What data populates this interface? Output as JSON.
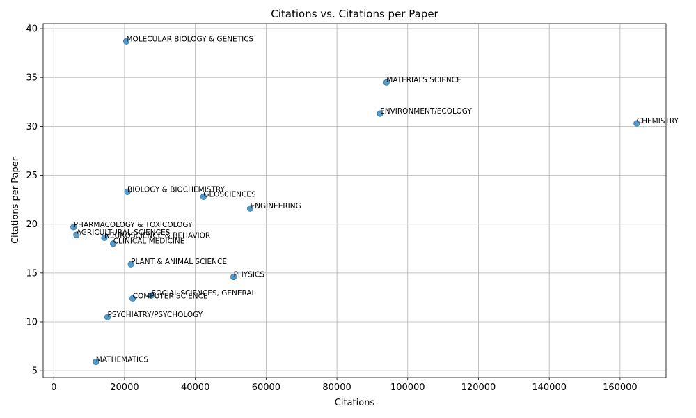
{
  "chart_data": {
    "type": "scatter",
    "title": "Citations vs. Citations per Paper",
    "xlabel": "Citations",
    "ylabel": "Citations per Paper",
    "xlim": [
      -3000,
      173000
    ],
    "ylim": [
      4.3,
      40.5
    ],
    "xticks": [
      0,
      20000,
      40000,
      60000,
      80000,
      100000,
      120000,
      140000,
      160000
    ],
    "xtick_labels": [
      "0",
      "20000",
      "40000",
      "60000",
      "80000",
      "100000",
      "120000",
      "140000",
      "160000"
    ],
    "yticks": [
      5,
      10,
      15,
      20,
      25,
      30,
      35,
      40
    ],
    "ytick_labels": [
      "5",
      "10",
      "15",
      "20",
      "25",
      "30",
      "35",
      "40"
    ],
    "grid": true,
    "color": "#1f77b4",
    "points": [
      {
        "label": "MOLECULAR BIOLOGY & GENETICS",
        "x": 20500,
        "y": 38.7
      },
      {
        "label": "MATERIALS SCIENCE",
        "x": 94000,
        "y": 34.5
      },
      {
        "label": "ENVIRONMENT/ECOLOGY",
        "x": 92200,
        "y": 31.3
      },
      {
        "label": "CHEMISTRY",
        "x": 164700,
        "y": 30.3
      },
      {
        "label": "BIOLOGY & BIOCHEMISTRY",
        "x": 20800,
        "y": 23.3
      },
      {
        "label": "GEOSCIENCES",
        "x": 42300,
        "y": 22.8
      },
      {
        "label": "ENGINEERING",
        "x": 55500,
        "y": 21.6
      },
      {
        "label": "PHARMACOLOGY & TOXICOLOGY",
        "x": 5600,
        "y": 19.7
      },
      {
        "label": "AGRICULTURAL SCIENCES",
        "x": 6400,
        "y": 18.9
      },
      {
        "label": "NEUROSCIENCE & BEHAVIOR",
        "x": 14300,
        "y": 18.6
      },
      {
        "label": "CLINICAL MEDICINE",
        "x": 16800,
        "y": 18.0
      },
      {
        "label": "PLANT & ANIMAL SCIENCE",
        "x": 21800,
        "y": 15.9
      },
      {
        "label": "PHYSICS",
        "x": 50800,
        "y": 14.6
      },
      {
        "label": "SOCIAL SCIENCES, GENERAL",
        "x": 27600,
        "y": 12.7
      },
      {
        "label": "COMPUTER SCIENCE",
        "x": 22300,
        "y": 12.4
      },
      {
        "label": "PSYCHIATRY/PSYCHOLOGY",
        "x": 15200,
        "y": 10.5
      },
      {
        "label": "MATHEMATICS",
        "x": 11900,
        "y": 5.9
      }
    ]
  }
}
